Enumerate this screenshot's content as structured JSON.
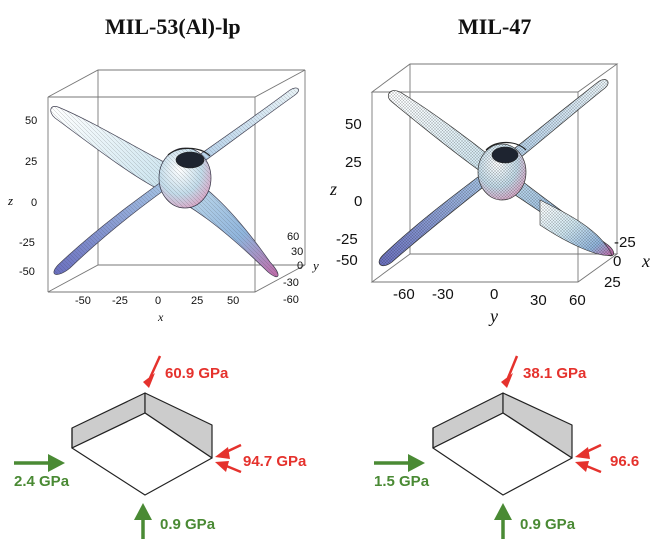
{
  "titles": {
    "left": "MIL-53(Al)-lp",
    "right": "MIL-47"
  },
  "plot_left": {
    "z_label": "z",
    "x_label": "x",
    "y_label": "y",
    "z_ticks": [
      "50",
      "25",
      "0",
      "-25",
      "-50"
    ],
    "x_ticks": [
      "-50",
      "-25",
      "0",
      "25",
      "50"
    ],
    "y_ticks": [
      "60",
      "30",
      "0",
      "-30",
      "-60"
    ]
  },
  "plot_right": {
    "z_label": "z",
    "y_label": "y",
    "x_label": "x",
    "z_ticks": [
      "50",
      "25",
      "0",
      "-25",
      "-50"
    ],
    "y_ticks": [
      "-60",
      "-30",
      "0",
      "30",
      "60"
    ],
    "x_ticks": [
      "-25",
      "0",
      "25"
    ]
  },
  "diagram_left": {
    "top_label": "60.9 GPa",
    "right_label": "94.7 GPa",
    "left_label": "2.4 GPa",
    "bottom_label": "0.9 GPa"
  },
  "diagram_right": {
    "top_label": "38.1 GPa",
    "right_label": "96.6",
    "left_label": "1.5 GPa",
    "bottom_label": "0.9 GPa"
  },
  "colors": {
    "compress_red": "#e5322d",
    "tension_green": "#4a8a34",
    "box_face": "#cccccc"
  }
}
